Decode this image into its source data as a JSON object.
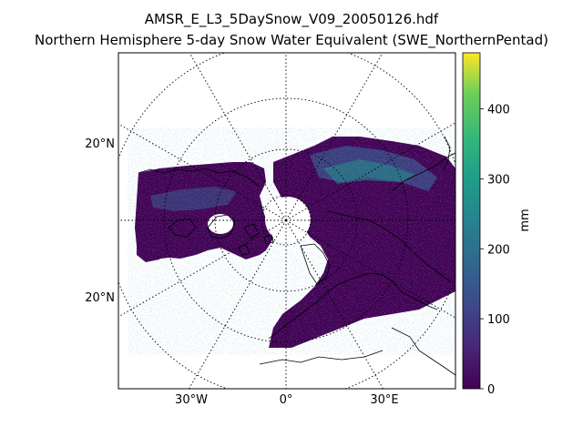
{
  "title": {
    "line1": "AMSR_E_L3_5DaySnow_V09_20050126.hdf",
    "line2": "Northern Hemisphere 5-day Snow Water Equivalent (SWE_NorthernPentad)"
  },
  "map": {
    "projection": "north-polar-stereographic",
    "lat_labels": [
      "20°N",
      "20°N"
    ],
    "lon_labels": [
      "30°W",
      "0°",
      "30°E"
    ],
    "graticule_style": "dotted",
    "coastlines": "black"
  },
  "colorbar": {
    "label": "mm",
    "colormap": "viridis",
    "ticks": [
      "0",
      "100",
      "200",
      "300",
      "400"
    ],
    "range": [
      0,
      480
    ]
  },
  "colors": {
    "snow_low": "#440154",
    "snow_mid": "#3b528b",
    "snow_high": "#21918c",
    "snow_peak": "#fde725"
  }
}
